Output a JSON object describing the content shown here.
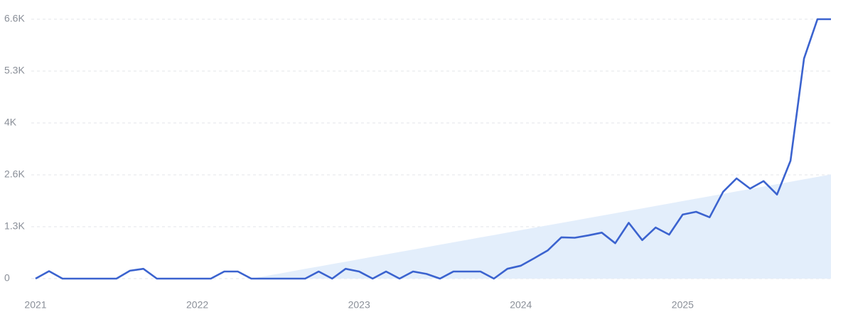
{
  "chart_data": {
    "type": "line",
    "categories": [
      "2021",
      null,
      null,
      null,
      null,
      null,
      null,
      null,
      null,
      null,
      null,
      null,
      "2022",
      null,
      null,
      null,
      null,
      null,
      null,
      null,
      null,
      null,
      null,
      null,
      "2023",
      null,
      null,
      null,
      null,
      null,
      null,
      null,
      null,
      null,
      null,
      null,
      "2024",
      null,
      null,
      null,
      null,
      null,
      null,
      null,
      null,
      null,
      null,
      null,
      "2025",
      null,
      null,
      null,
      null,
      null,
      null,
      null,
      null,
      null,
      null,
      null
    ],
    "series": [
      {
        "color": "#3b63cf",
        "values": [
          0,
          190,
          0,
          0,
          0,
          0,
          0,
          200,
          250,
          0,
          0,
          0,
          0,
          0,
          180,
          180,
          0,
          0,
          0,
          0,
          0,
          180,
          0,
          250,
          180,
          0,
          180,
          0,
          180,
          120,
          0,
          180,
          180,
          180,
          0,
          250,
          330,
          520,
          720,
          1050,
          1040,
          1100,
          1170,
          900,
          1420,
          980,
          1300,
          1120,
          1630,
          1700,
          1560,
          2210,
          2550,
          2290,
          2480,
          2140,
          3000,
          5600,
          6600,
          6600
        ]
      },
      {
        "type": "area",
        "color": "#e3eefb",
        "values": [
          null,
          null,
          null,
          null,
          null,
          null,
          null,
          null,
          null,
          null,
          null,
          null,
          null,
          null,
          null,
          null,
          0,
          62,
          123,
          185,
          247,
          308,
          370,
          431,
          493,
          555,
          616,
          678,
          740,
          801,
          863,
          924,
          986,
          1048,
          1109,
          1171,
          1233,
          1294,
          1356,
          1417,
          1479,
          1541,
          1602,
          1664,
          1726,
          1787,
          1849,
          1910,
          1972,
          2034,
          2095,
          2157,
          2219,
          2280,
          2342,
          2403,
          2465,
          2527,
          2588,
          2650
        ]
      }
    ],
    "ylim": [
      0,
      6600
    ],
    "yticks": [
      0,
      {
        "value": 1320,
        "label": "1.3K"
      },
      {
        "value": 2640,
        "label": "2.6K"
      },
      {
        "value": 3960,
        "label": "4K"
      },
      {
        "value": 5280,
        "label": "5.3K"
      },
      {
        "value": 6600,
        "label": "6.6K"
      }
    ],
    "grid": true
  }
}
